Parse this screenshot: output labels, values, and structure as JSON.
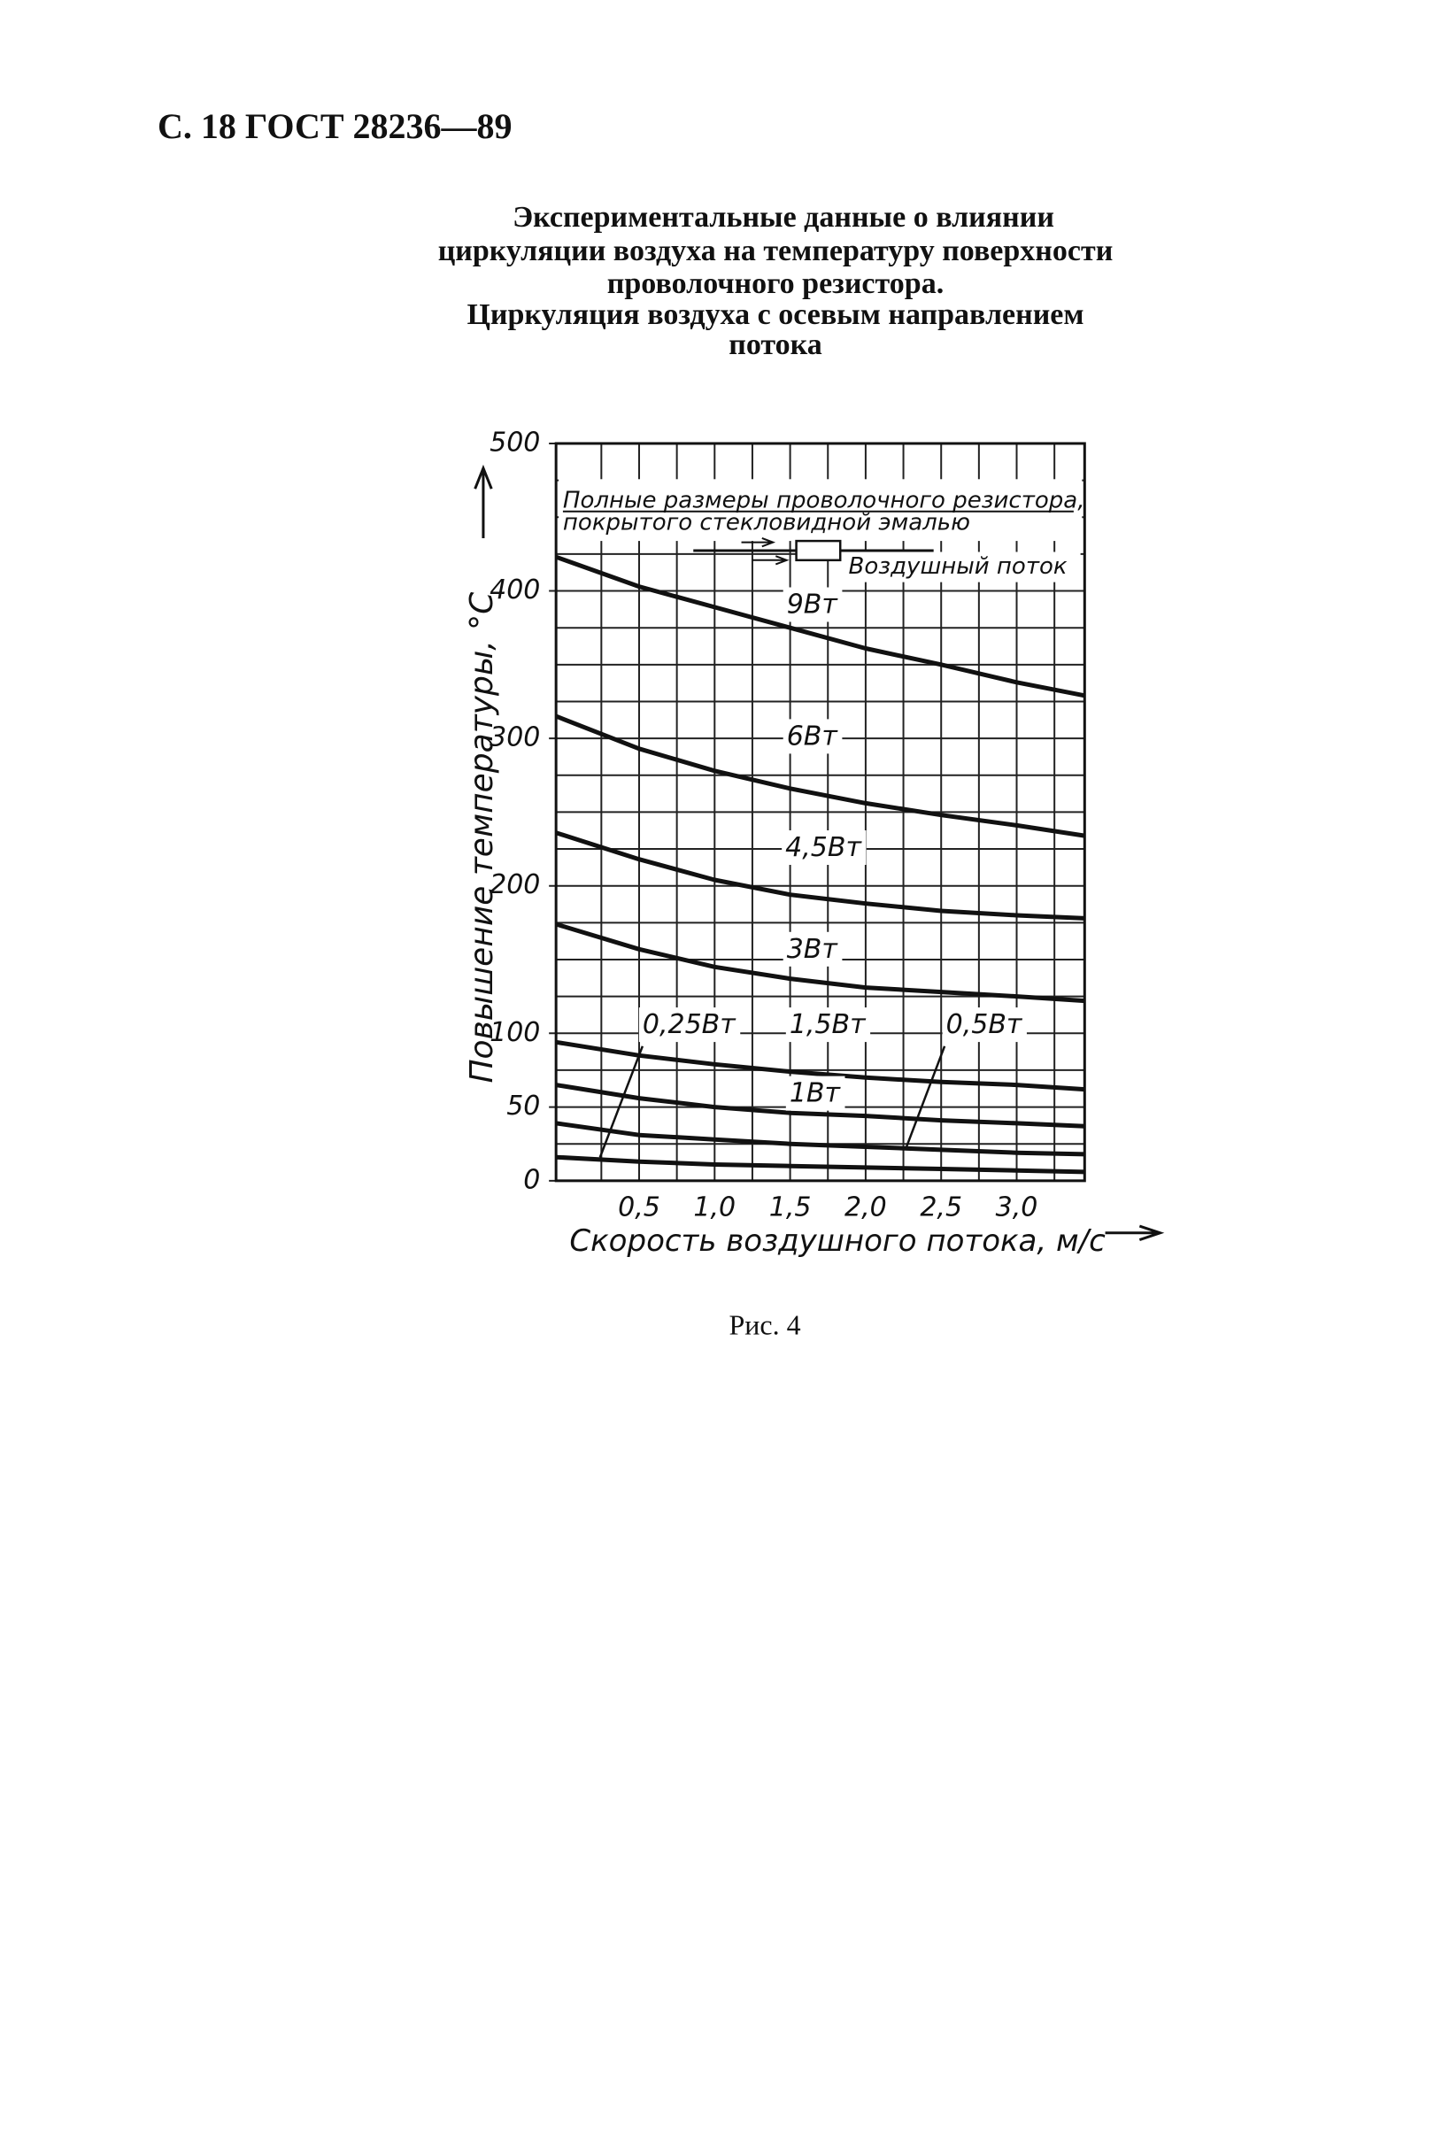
{
  "header": "С. 18 ГОСТ 28236—89",
  "title_lines": [
    "Экспериментальные данные о влиянии",
    "циркуляции воздуха на температуру поверхности",
    "проволочного резистора.",
    "Циркуляция воздуха с осевым направлением",
    "потока"
  ],
  "caption": "Рис. 4",
  "chart_data": {
    "type": "line",
    "note": [
      "Полные размеры проволочного резистора,",
      "покрытого стекловидной эмалью"
    ],
    "flow_label": "Воздушный поток",
    "x_label": "Скорость воздушного потока, м/с",
    "y_label": "Повышение температуры, °С",
    "x": [
      -0.05,
      0.5,
      1.0,
      1.5,
      2.0,
      2.5,
      3.0,
      3.45
    ],
    "xlim": [
      -0.05,
      3.45
    ],
    "ylim": [
      0,
      500
    ],
    "xticks": [
      {
        "value": 0.5,
        "label": "0,5"
      },
      {
        "value": 1.0,
        "label": "1,0"
      },
      {
        "value": 1.5,
        "label": "1,5"
      },
      {
        "value": 2.0,
        "label": "2,0"
      },
      {
        "value": 2.5,
        "label": "2,5"
      },
      {
        "value": 3.0,
        "label": "3,0"
      }
    ],
    "yticks": [
      0,
      50,
      100,
      200,
      300,
      400,
      500
    ],
    "xminorticks": [
      0.25,
      0.75,
      1.25,
      1.75,
      2.25,
      2.75,
      3.25
    ],
    "yminorticks": [
      25,
      75,
      125,
      150,
      175,
      225,
      250,
      275,
      325,
      350,
      375,
      425,
      450,
      475
    ],
    "grid": true,
    "series": [
      {
        "name": "9Вт",
        "color": "#111111",
        "values": [
          423,
          403,
          389,
          375,
          361,
          350,
          338,
          329
        ]
      },
      {
        "name": "6Вт",
        "color": "#111111",
        "values": [
          315,
          293,
          278,
          266,
          256,
          248,
          241,
          234
        ]
      },
      {
        "name": "4,5Вт",
        "color": "#111111",
        "values": [
          236,
          218,
          204,
          194,
          188,
          183,
          180,
          178
        ]
      },
      {
        "name": "3Вт",
        "color": "#111111",
        "values": [
          174,
          157,
          145,
          137,
          131,
          128,
          125,
          122
        ]
      },
      {
        "name": "0,25Вт",
        "color": "#111111",
        "values": [
          16,
          13,
          11,
          10,
          9,
          8,
          7,
          6
        ]
      },
      {
        "name": "1,5Вт",
        "color": "#111111",
        "values": [
          94,
          85,
          79,
          74,
          70,
          67,
          65,
          62
        ]
      },
      {
        "name": "0,5Вт",
        "color": "#111111",
        "values": [
          39,
          31,
          28,
          25,
          23,
          21,
          19,
          18
        ]
      },
      {
        "name": "1Вт",
        "color": "#111111",
        "values": [
          65,
          56,
          50,
          46,
          44,
          41,
          39,
          37
        ]
      }
    ]
  }
}
